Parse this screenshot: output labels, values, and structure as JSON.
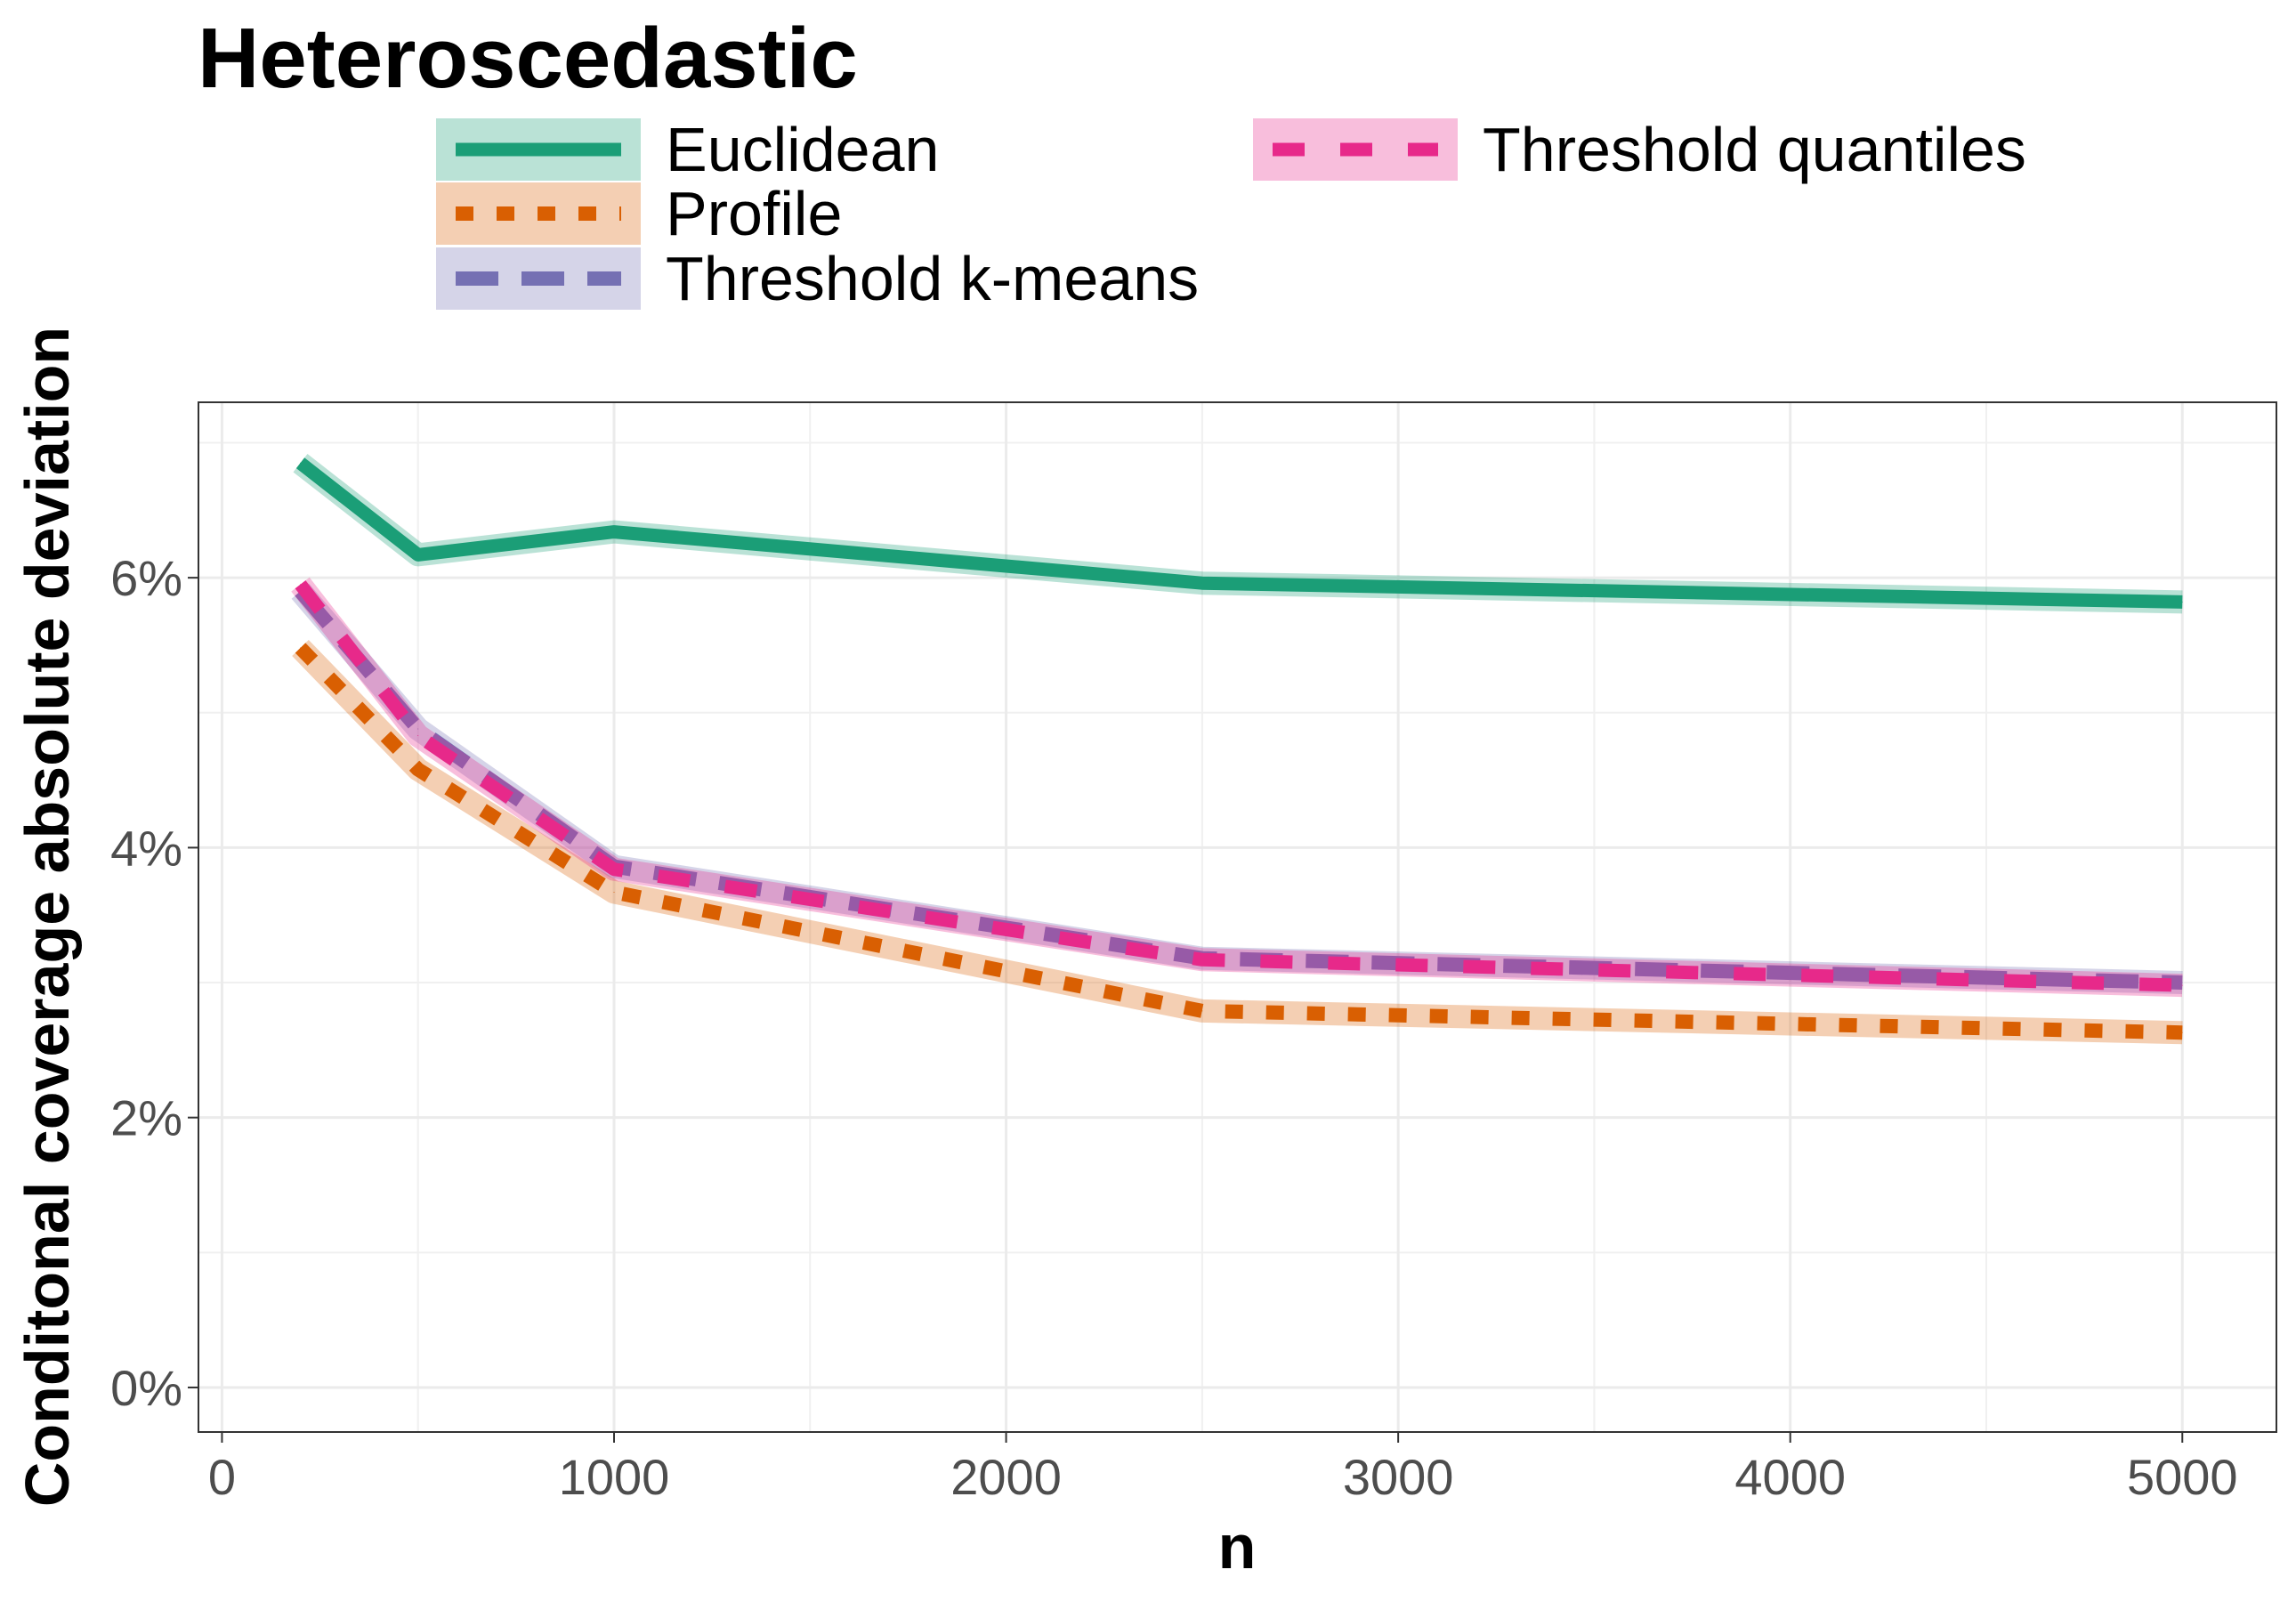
{
  "chart_data": {
    "type": "line",
    "title": "Heteroscedastic",
    "xlabel": "n",
    "ylabel": "Conditonal coverage absolute deviation",
    "xlim": [
      -60,
      5240
    ],
    "ylim": [
      -0.33,
      7.3
    ],
    "x_ticks": [
      0,
      1000,
      2000,
      3000,
      4000,
      5000
    ],
    "x_tick_labels": [
      "0",
      "1000",
      "2000",
      "3000",
      "4000",
      "5000"
    ],
    "y_ticks": [
      0,
      2,
      4,
      6
    ],
    "y_tick_labels": [
      "0%",
      "2%",
      "4%",
      "6%"
    ],
    "grid": true,
    "legend_position": "top",
    "x": [
      200,
      500,
      1000,
      2500,
      5000
    ],
    "series": [
      {
        "name": "Euclidean",
        "color": "#1b9e77",
        "dash": "solid",
        "values": [
          6.85,
          6.17,
          6.34,
          5.96,
          5.82
        ]
      },
      {
        "name": "Profile",
        "color": "#d95f02",
        "dash": "dotted",
        "values": [
          5.48,
          4.58,
          3.67,
          2.79,
          2.63
        ]
      },
      {
        "name": "Threshold k-means",
        "color": "#7570b3",
        "dash": "longdash",
        "values": [
          5.9,
          4.88,
          3.86,
          3.18,
          3.0
        ]
      },
      {
        "name": "Threshold quantiles",
        "color": "#e7298a",
        "dash": "dashed",
        "values": [
          5.95,
          4.83,
          3.84,
          3.17,
          2.98
        ]
      }
    ]
  }
}
